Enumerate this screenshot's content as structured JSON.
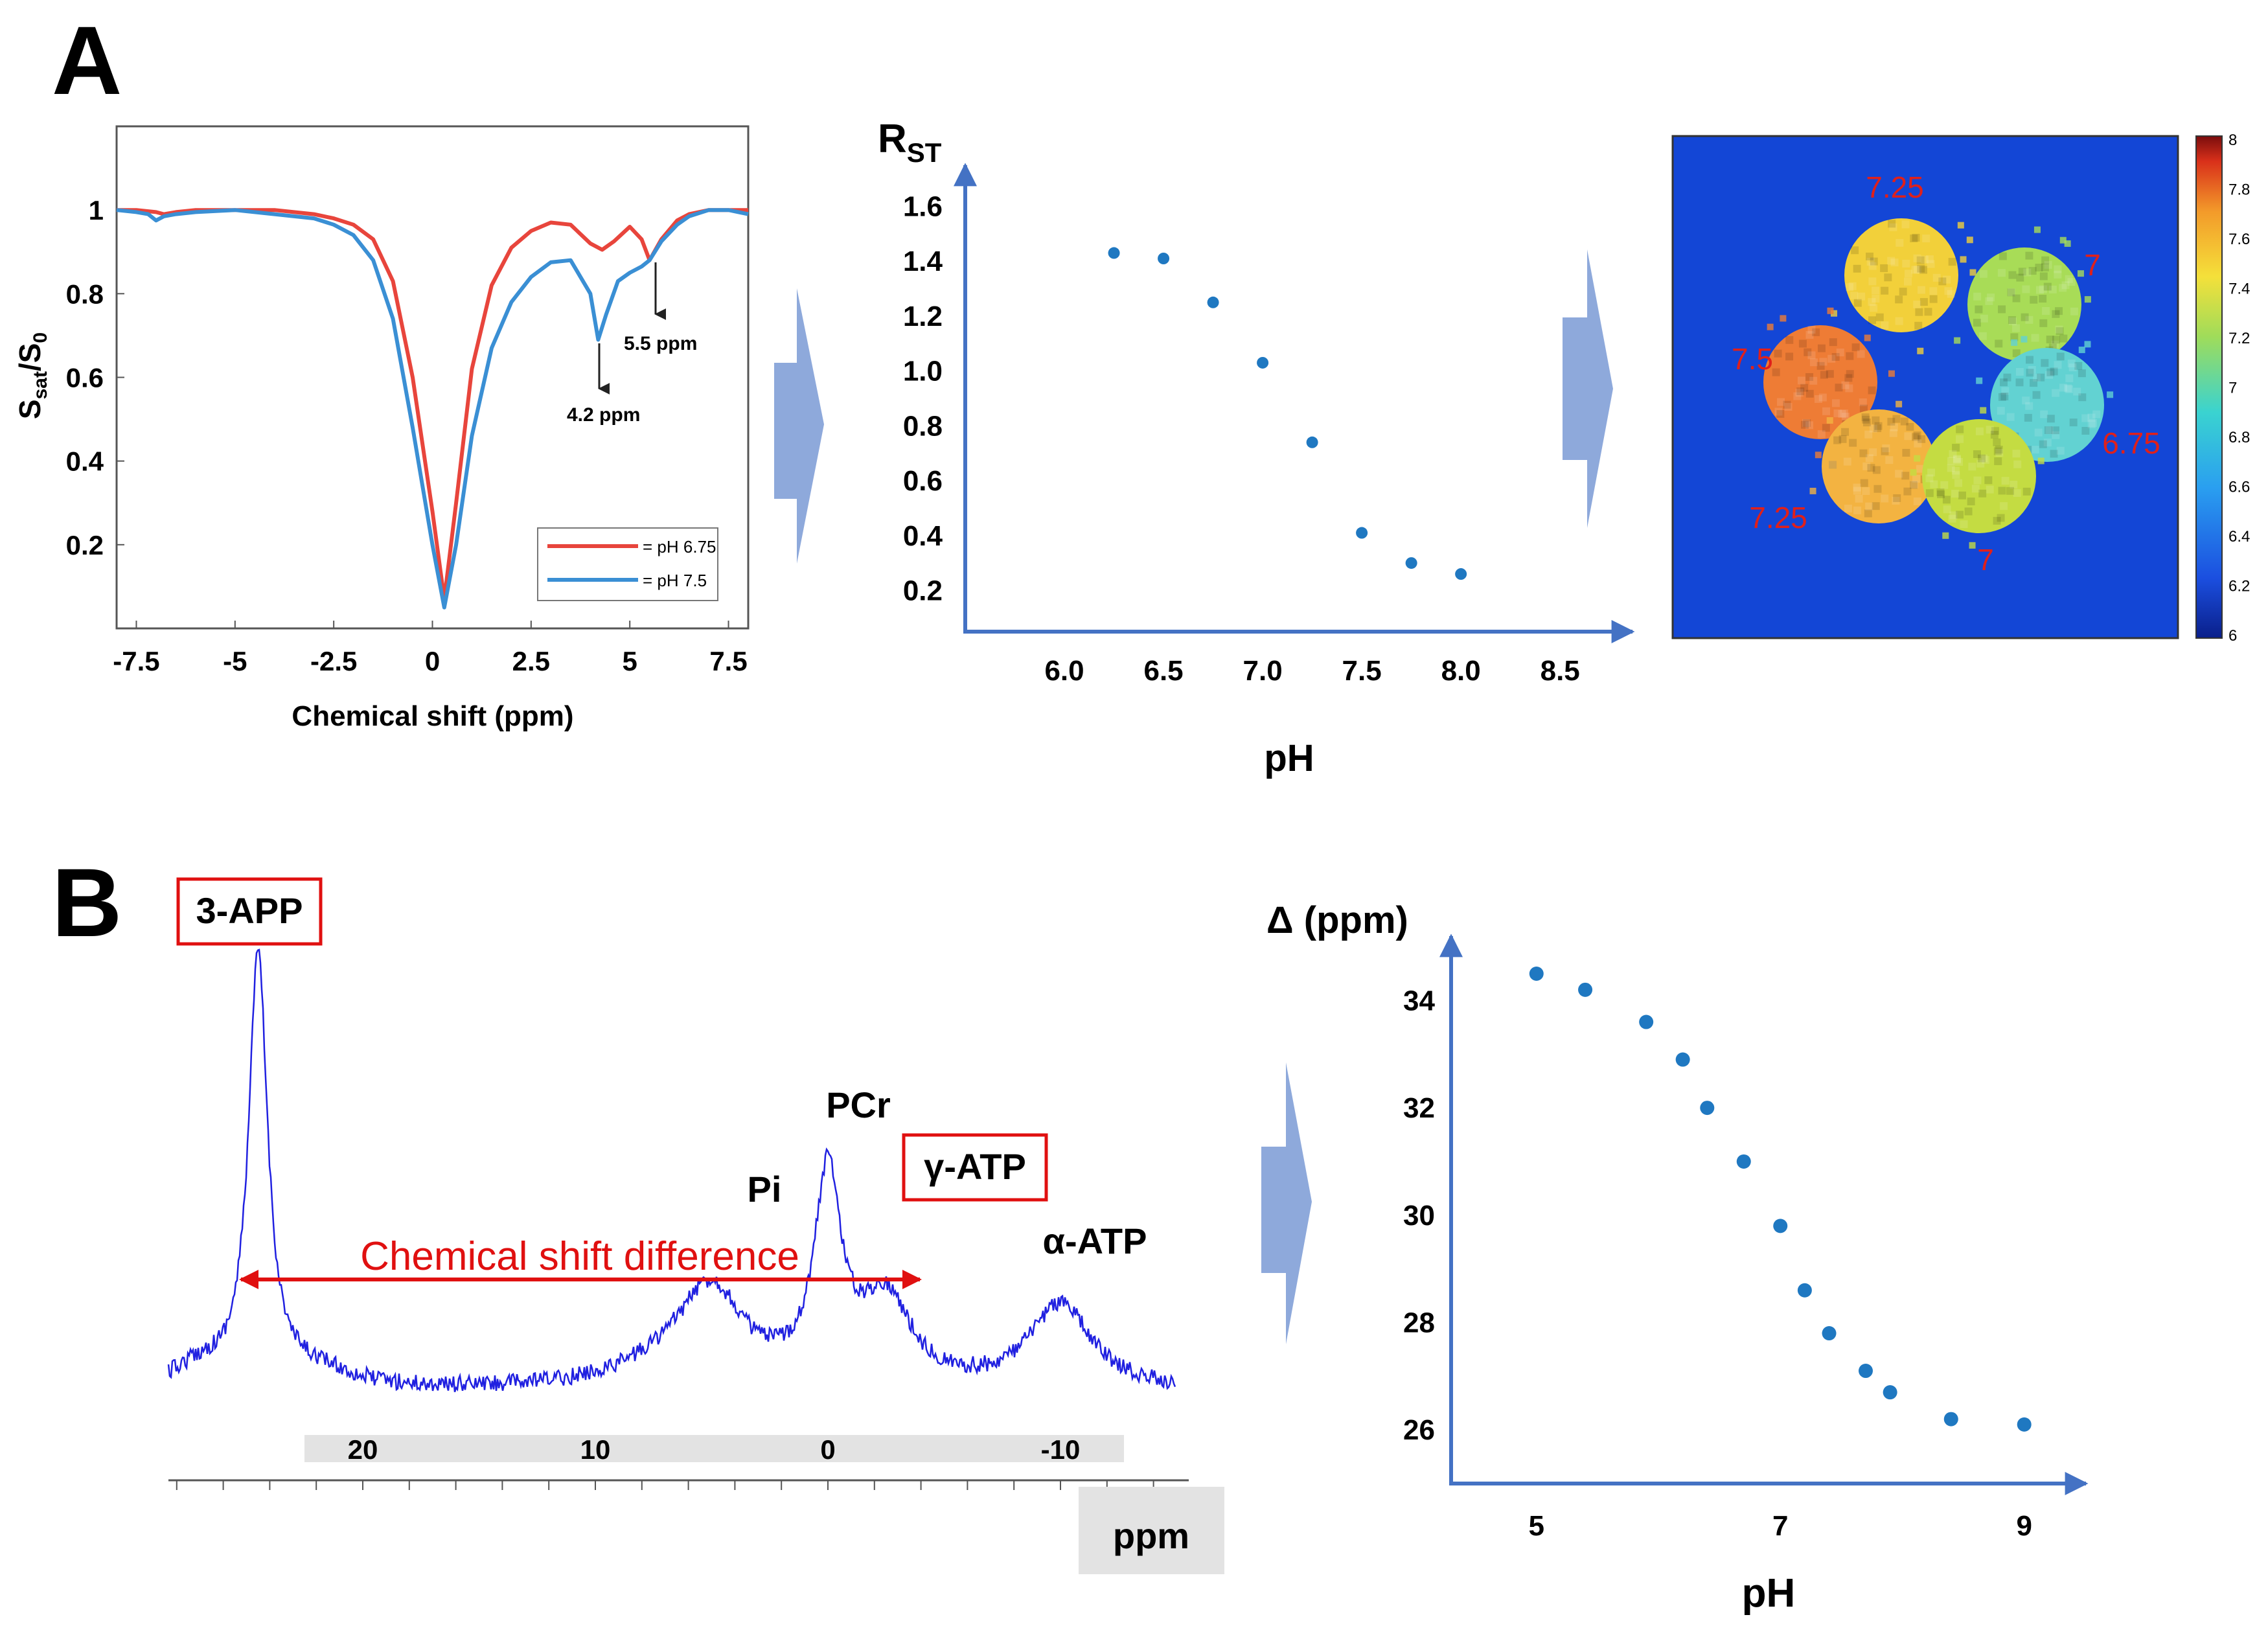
{
  "panel_labels": {
    "a": "A",
    "b": "B"
  },
  "chart_data": [
    {
      "type": "line",
      "panel": "A",
      "ylabel_main": "S",
      "ylabel_sub1": "sat",
      "ylabel_slash": "/S",
      "ylabel_sub2": "0",
      "xlabel": "Chemical shift (ppm)",
      "xlim": [
        -8,
        8
      ],
      "ylim": [
        0,
        1.2
      ],
      "x_ticks": [
        -7.5,
        -5,
        -2.5,
        0,
        2.5,
        5,
        7.5
      ],
      "y_ticks": [
        0.2,
        0.4,
        0.6,
        0.8,
        1
      ],
      "legend_position": "bottom-right",
      "annotations": [
        {
          "text": "5.5 ppm",
          "x": 5.5,
          "y": 0.88
        },
        {
          "text": "4.2 ppm",
          "x": 4.2,
          "y": 0.69
        }
      ],
      "series": [
        {
          "name": "pH 6.75",
          "color": "#e8453c",
          "x": [
            -8,
            -7.5,
            -7,
            -6.8,
            -6.5,
            -6,
            -5,
            -4,
            -3,
            -2.5,
            -2,
            -1.5,
            -1,
            -0.5,
            0,
            0.3,
            0.6,
            1,
            1.5,
            2,
            2.5,
            3,
            3.5,
            4,
            4.3,
            4.6,
            5,
            5.3,
            5.5,
            5.8,
            6.2,
            6.5,
            7,
            7.5,
            8
          ],
          "values": [
            1.0,
            1.0,
            0.995,
            0.99,
            0.995,
            1.0,
            1.0,
            1.0,
            0.99,
            0.98,
            0.965,
            0.93,
            0.83,
            0.6,
            0.28,
            0.07,
            0.3,
            0.62,
            0.82,
            0.91,
            0.95,
            0.97,
            0.965,
            0.92,
            0.905,
            0.925,
            0.96,
            0.93,
            0.88,
            0.93,
            0.975,
            0.99,
            1.0,
            1.0,
            1.0
          ]
        },
        {
          "name": "pH 7.5",
          "color": "#3a8fd4",
          "x": [
            -8,
            -7.5,
            -7.2,
            -7,
            -6.8,
            -6.5,
            -6,
            -5,
            -4,
            -3,
            -2.5,
            -2,
            -1.5,
            -1,
            -0.5,
            0,
            0.3,
            0.6,
            1,
            1.5,
            2,
            2.5,
            3,
            3.5,
            4,
            4.2,
            4.4,
            4.7,
            5,
            5.3,
            5.5,
            5.8,
            6.2,
            6.5,
            7,
            7.5,
            8
          ],
          "values": [
            1.0,
            0.995,
            0.99,
            0.975,
            0.985,
            0.99,
            0.995,
            1.0,
            0.99,
            0.98,
            0.965,
            0.94,
            0.88,
            0.74,
            0.48,
            0.2,
            0.05,
            0.2,
            0.46,
            0.67,
            0.78,
            0.84,
            0.875,
            0.88,
            0.8,
            0.69,
            0.75,
            0.83,
            0.85,
            0.865,
            0.88,
            0.925,
            0.965,
            0.985,
            1.0,
            1.0,
            0.99
          ]
        }
      ]
    },
    {
      "type": "scatter",
      "panel": "A",
      "ylabel_main": "R",
      "ylabel_sub": "ST",
      "xlabel": "pH",
      "xlim": [
        5.5,
        8.8
      ],
      "ylim": [
        0.05,
        1.75
      ],
      "x_ticks": [
        6.0,
        6.5,
        7.0,
        7.5,
        8.0,
        8.5
      ],
      "y_ticks": [
        0.2,
        0.4,
        0.6,
        0.8,
        1.0,
        1.2,
        1.4,
        1.6
      ],
      "color": "#1f78c1",
      "x": [
        6.25,
        6.5,
        6.75,
        7.0,
        7.25,
        7.5,
        7.75,
        8.0
      ],
      "values": [
        1.43,
        1.41,
        1.25,
        1.03,
        0.74,
        0.41,
        0.3,
        0.26
      ]
    },
    {
      "type": "heatmap",
      "panel": "A",
      "colorbar_ticks": [
        "8",
        "7.8",
        "7.6",
        "7.4",
        "7.2",
        "7",
        "6.8",
        "6.6",
        "6.4",
        "6.2",
        "6"
      ],
      "colorbar_range": [
        6,
        8
      ],
      "background_color": "#1346d6",
      "phantom_labels": [
        "7.25",
        "7",
        "7.5",
        "6.75",
        "7.25",
        "7"
      ],
      "phantoms": [
        {
          "value": 7.25,
          "color": "#f2d03a"
        },
        {
          "value": 7.0,
          "color": "#a8dc57"
        },
        {
          "value": 7.5,
          "color": "#ee7c35"
        },
        {
          "value": 6.75,
          "color": "#62d2d2"
        },
        {
          "value": 7.3,
          "color": "#f3b341"
        },
        {
          "value": 7.05,
          "color": "#c4dc42"
        }
      ]
    },
    {
      "type": "line",
      "panel": "B",
      "xlabel": "ppm",
      "x_ticks": [
        "20",
        "10",
        "0",
        "-10"
      ],
      "color": "#2020e0",
      "peaks": [
        {
          "label": "3-APP",
          "ppm": 24.5,
          "height": 1.0,
          "boxed": true
        },
        {
          "label": "Pi",
          "ppm": 5.0,
          "height": 0.2,
          "boxed": false
        },
        {
          "label": "PCr",
          "ppm": 0.0,
          "height": 0.48,
          "boxed": false
        },
        {
          "label": "γ-ATP",
          "ppm": -2.5,
          "height": 0.2,
          "boxed": true
        },
        {
          "label": "α-ATP",
          "ppm": -10.0,
          "height": 0.2,
          "boxed": false
        }
      ],
      "annotation": "Chemical shift difference"
    },
    {
      "type": "scatter",
      "panel": "B",
      "ylabel": "Δ (ppm)",
      "xlabel": "pH",
      "xlim": [
        4.3,
        9.4
      ],
      "ylim": [
        25,
        35.2
      ],
      "x_ticks": [
        5,
        7,
        9
      ],
      "y_ticks": [
        26,
        28,
        30,
        32,
        34
      ],
      "color": "#1f78c1",
      "x": [
        5.0,
        5.4,
        5.9,
        6.2,
        6.4,
        6.7,
        7.0,
        7.2,
        7.4,
        7.7,
        7.9,
        8.4,
        9.0
      ],
      "values": [
        34.5,
        34.2,
        33.6,
        32.9,
        32.0,
        31.0,
        29.8,
        28.6,
        27.8,
        27.1,
        26.7,
        26.2,
        26.1
      ]
    }
  ]
}
